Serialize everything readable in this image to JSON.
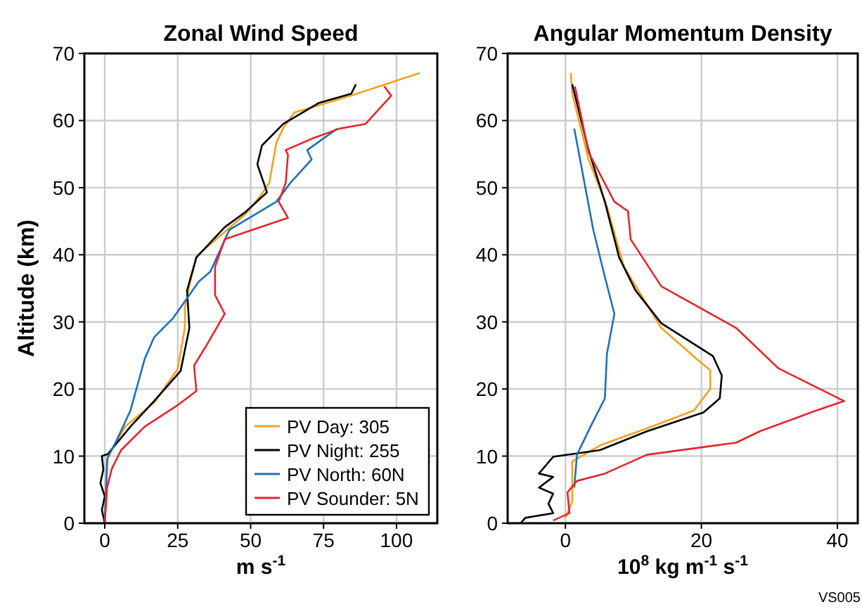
{
  "chart_data": [
    {
      "type": "line",
      "title": "Zonal Wind Speed",
      "xlabel": "m s$^{-1}$",
      "ylabel": "Altitude (km)",
      "xlim": [
        -7,
        114
      ],
      "xticks": [
        0,
        25,
        50,
        75,
        100
      ],
      "ylim": [
        0,
        70
      ],
      "yticks": [
        0,
        10,
        20,
        30,
        40,
        50,
        60,
        70
      ],
      "grid": true,
      "legend": "bottom right",
      "line_style": "solid",
      "series": [
        {
          "name": "PV Day: 305",
          "color": "#f4a11f",
          "x": [
            0,
            0.5,
            1,
            7,
            17,
            25,
            27.4,
            27.5,
            27.4,
            29,
            31.4,
            40,
            48.3,
            53,
            56.4,
            58.8,
            61.2,
            65,
            85,
            108
          ],
          "values": [
            0,
            5,
            10,
            14.4,
            18,
            23,
            29,
            31,
            32,
            35.4,
            39.8,
            43,
            46.1,
            48.6,
            50.7,
            56.7,
            58.9,
            61.2,
            63.8,
            67.1
          ]
        },
        {
          "name": "PV Night: 255",
          "color": "#000000",
          "x": [
            0,
            -1,
            0,
            -1.5,
            -0.5,
            -1,
            1,
            8.8,
            16.9,
            26,
            29,
            28.2,
            31.4,
            41.1,
            48.3,
            55.6,
            52.3,
            53.9,
            61.2,
            73.3,
            84.5,
            86.1
          ],
          "values": [
            0,
            2,
            4,
            6,
            8,
            10,
            10.3,
            14.4,
            18.2,
            22.7,
            29.1,
            34.7,
            39.6,
            44.1,
            46.4,
            49.3,
            53.5,
            56.3,
            59.5,
            62.6,
            64,
            65.4
          ]
        },
        {
          "name": "PV North: 60N",
          "color": "#1f6fb8",
          "x": [
            0,
            0.8,
            4,
            8.8,
            13.7,
            16.9,
            23.3,
            32.2,
            36.2,
            42.7,
            58.8,
            63.6,
            70.9,
            69.4,
            79.7
          ],
          "values": [
            0.4,
            9.6,
            12.3,
            16.8,
            24.5,
            27.7,
            30.5,
            36,
            37.5,
            43.7,
            47.9,
            50.7,
            54.2,
            55.6,
            58.8
          ]
        },
        {
          "name": "PV Sounder: 5N",
          "color": "#e3262c",
          "x": [
            0,
            0.8,
            2.4,
            5.6,
            13.7,
            25,
            31.4,
            30.6,
            34.6,
            41.1,
            37.8,
            37.8,
            37.8,
            41.1,
            62.8,
            59.6,
            62,
            62.8,
            62,
            71.6,
            80.5,
            89.4,
            98.2,
            95.8
          ],
          "values": [
            0,
            5.3,
            8.1,
            10.9,
            14.4,
            17.6,
            19.7,
            23.5,
            26.3,
            31.2,
            34,
            36,
            38.2,
            42.3,
            45.5,
            47.9,
            50.7,
            54.9,
            55.6,
            57.4,
            58.8,
            59.5,
            63.7,
            65.1
          ]
        }
      ]
    },
    {
      "type": "line",
      "title": "Angular Momentum Density",
      "xlabel": "10$^{8}$ kg m$^{-1}$ s$^{-1}$",
      "xlim": [
        -8.5,
        43
      ],
      "xticks": [
        0,
        20,
        40
      ],
      "ylim": [
        0,
        70
      ],
      "yticks": [
        0,
        10,
        20,
        30,
        40,
        50,
        60,
        70
      ],
      "grid": true,
      "line_style": "solid",
      "annotations": [
        "VS005"
      ],
      "series": [
        {
          "color": "#f4a11f",
          "x": [
            0,
            1,
            1,
            5.1,
            12.7,
            18.9,
            21.3,
            21.3,
            19.6,
            14.1,
            8.6,
            6.1,
            3.4,
            1,
            0.8
          ],
          "values": [
            0.8,
            3.2,
            9.2,
            11.6,
            14.4,
            16.8,
            20,
            22.8,
            24.2,
            29.1,
            38.2,
            47.2,
            54.2,
            64,
            67.1
          ]
        },
        {
          "color": "#000000",
          "x": [
            -6.6,
            -5.9,
            -1.8,
            -2.5,
            -1.8,
            -3.9,
            -1.8,
            -3.9,
            -1.8,
            5.1,
            12,
            20.3,
            22.7,
            23,
            21.7,
            14.1,
            10.3,
            7.9,
            5.8,
            3.4,
            1
          ],
          "values": [
            0,
            0.8,
            1.5,
            2.9,
            4.4,
            5.3,
            6.9,
            7.4,
            9.9,
            10.9,
            13.7,
            16.5,
            18.6,
            22,
            24.9,
            29.8,
            34.7,
            39.6,
            47.9,
            55.6,
            65.4
          ]
        },
        {
          "color": "#1f6fb8",
          "x": [
            1.3,
            1.7,
            3.7,
            5.8,
            6.1,
            7.2,
            5.8,
            4.1,
            1.3
          ],
          "values": [
            5.3,
            10.2,
            14.4,
            18.6,
            25.2,
            31.2,
            36.7,
            43.7,
            58.8
          ]
        },
        {
          "color": "#e3262c",
          "x": [
            -1.8,
            0.6,
            0.3,
            1.7,
            5.8,
            12,
            25.1,
            28.6,
            36.9,
            41,
            39.6,
            31.3,
            25.1,
            14.1,
            9.6,
            9.2,
            7.2,
            3.4,
            1.4
          ],
          "values": [
            0.4,
            1.5,
            4.6,
            6.3,
            7.4,
            10.2,
            12,
            13.7,
            16.8,
            18.2,
            18.9,
            23.1,
            29.1,
            35.3,
            42.3,
            46.5,
            47.9,
            55.3,
            65.1
          ]
        }
      ]
    }
  ]
}
